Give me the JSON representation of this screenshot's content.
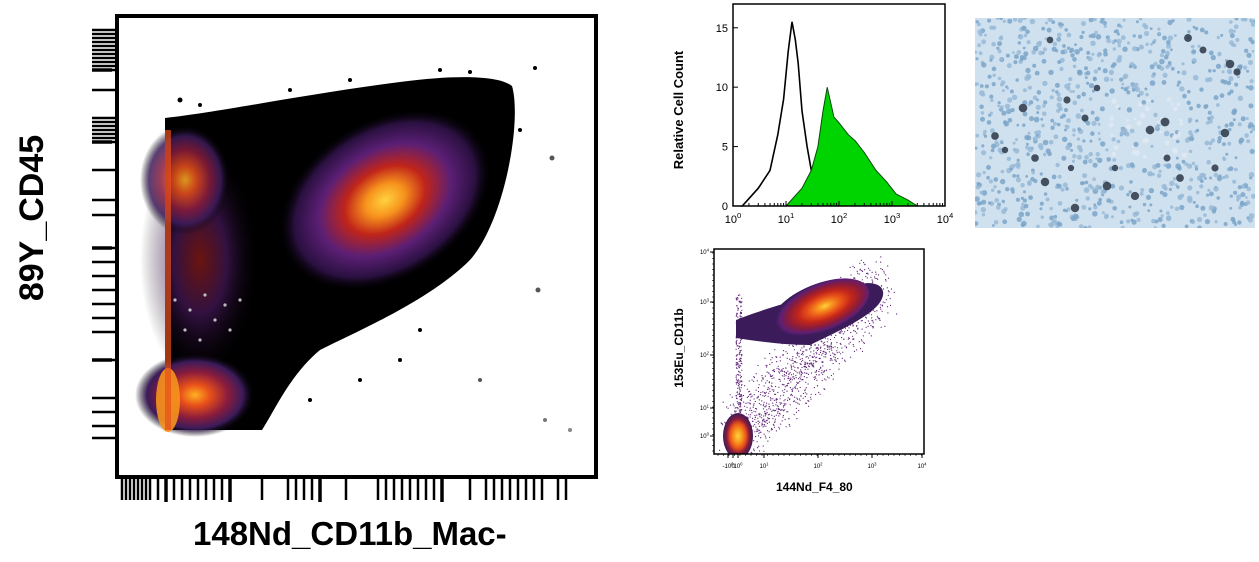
{
  "chart_data": [
    {
      "id": "cd45_cd11b_density",
      "type": "scatter",
      "title": "",
      "xlabel": "148Nd_CD11b_Mac-",
      "ylabel": "89Y_CD45",
      "tick_labels_shown": false,
      "colormap": [
        "#000000",
        "#3b1b5a",
        "#5b1f75",
        "#8a1c3c",
        "#c0241a",
        "#e8501a",
        "#f7941d",
        "#ffd23f"
      ],
      "populations": [
        {
          "name": "",
          "x": 0.42,
          "y": 0.8,
          "weight": 1.0
        },
        {
          "name": "",
          "x": 0.03,
          "y": 0.1,
          "weight": 0.8
        },
        {
          "name": "",
          "x": 0.03,
          "y": 0.78,
          "weight": 0.5
        }
      ]
    },
    {
      "id": "histogram_overlay",
      "type": "area",
      "title": "",
      "xlabel": "",
      "ylabel": "Relative Cell Count",
      "xscale": "log",
      "xlim": [
        1,
        10000
      ],
      "ylim": [
        0,
        17
      ],
      "yticks": [
        "0",
        "5",
        "10",
        "15"
      ],
      "xticks": [
        {
          "base": "10",
          "exp": "0"
        },
        {
          "base": "10",
          "exp": "1"
        },
        {
          "base": "10",
          "exp": "2"
        },
        {
          "base": "10",
          "exp": "3"
        },
        {
          "base": "10",
          "exp": "4"
        }
      ],
      "series": [
        {
          "name": "",
          "style": "outline",
          "color": "#000000",
          "x": [
            1.5,
            3,
            5,
            7,
            9,
            11,
            13,
            15,
            17,
            20,
            25,
            30,
            40,
            60,
            100
          ],
          "y": [
            0,
            1.5,
            3,
            6,
            9,
            13,
            15.5,
            14,
            12,
            8,
            5,
            3,
            1.5,
            0.5,
            0
          ]
        },
        {
          "name": "",
          "style": "filled",
          "color": "#00d400",
          "x": [
            10,
            20,
            30,
            40,
            50,
            60,
            80,
            100,
            150,
            200,
            300,
            500,
            800,
            1200,
            2000,
            3000
          ],
          "y": [
            0,
            1.5,
            3,
            5,
            8,
            10,
            7.5,
            7,
            6,
            5.5,
            4.5,
            3,
            2,
            1,
            0.5,
            0
          ]
        }
      ]
    },
    {
      "id": "f480_cd11b_density",
      "type": "scatter",
      "title": "",
      "xlabel": "144Nd_F4_80",
      "ylabel": "153Eu_CD11b",
      "colormap": [
        "#3b1b5a",
        "#5b1f75",
        "#8a1c3c",
        "#c0241a",
        "#e8501a",
        "#f7941d",
        "#ffd23f"
      ],
      "xticks": [
        {
          "base": "-10",
          "exp": "0"
        },
        {
          "base": "0",
          "exp": ""
        },
        {
          "base": "10",
          "exp": "0"
        },
        {
          "base": "10",
          "exp": "1"
        },
        {
          "base": "10",
          "exp": "2"
        },
        {
          "base": "10",
          "exp": "3"
        },
        {
          "base": "10",
          "exp": "4"
        }
      ],
      "yticks": [
        {
          "base": "10",
          "exp": "0"
        },
        {
          "base": "10",
          "exp": "1"
        },
        {
          "base": "10",
          "exp": "2"
        },
        {
          "base": "10",
          "exp": "3"
        },
        {
          "base": "10",
          "exp": "4"
        }
      ],
      "populations": [
        {
          "name": "",
          "x": 2.6,
          "y": 3.0,
          "weight": 1.0
        },
        {
          "name": "",
          "x": 0.0,
          "y": 0.1,
          "weight": 1.0
        }
      ]
    }
  ],
  "micrograph": {
    "stain": "immunohistochemistry",
    "background": "#cfe0ee"
  }
}
